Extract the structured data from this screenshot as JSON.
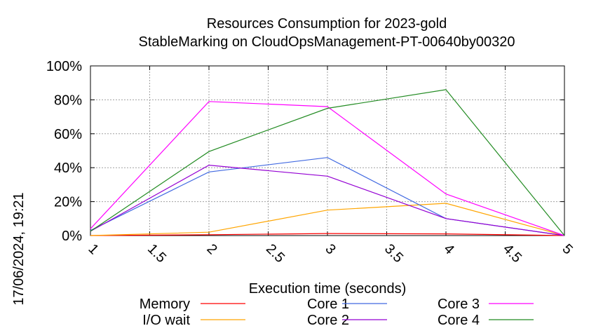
{
  "chart_data": {
    "type": "line",
    "title": "Resources Consumption for 2023-gold",
    "subtitle": "StableMarking on CloudOpsManagement-PT-00640by00320",
    "xlabel": "Execution time (seconds)",
    "ylabel": "",
    "timestamp": "17/06/2024, 19:21",
    "xlim": [
      1,
      5
    ],
    "ylim": [
      0,
      100
    ],
    "x_ticks": [
      "1",
      "1.5",
      "2",
      "2.5",
      "3",
      "3.5",
      "4",
      "4.5",
      "5"
    ],
    "y_ticks": [
      "0%",
      "20%",
      "40%",
      "60%",
      "80%",
      "100%"
    ],
    "grid": true,
    "legend_position": "bottom",
    "series": [
      {
        "name": "Memory",
        "color": "#ff0000",
        "x": [
          1,
          2,
          3,
          4,
          5
        ],
        "values": [
          0,
          0.5,
          1.2,
          1,
          0
        ]
      },
      {
        "name": "I/O wait",
        "color": "#ffa500",
        "x": [
          1,
          2,
          3,
          4,
          5
        ],
        "values": [
          0,
          2,
          15,
          19,
          0
        ]
      },
      {
        "name": "Core 1",
        "color": "#4169e1",
        "x": [
          1,
          2,
          3,
          4,
          5
        ],
        "values": [
          3,
          37.5,
          46,
          10,
          0
        ]
      },
      {
        "name": "Core 2",
        "color": "#9400d3",
        "x": [
          1,
          2,
          3,
          4,
          5
        ],
        "values": [
          2.5,
          41.5,
          35,
          10,
          0
        ]
      },
      {
        "name": "Core 3",
        "color": "#ff00ff",
        "x": [
          1,
          2,
          3,
          4,
          5
        ],
        "values": [
          4,
          79,
          76,
          24.5,
          0
        ]
      },
      {
        "name": "Core 4",
        "color": "#228b22",
        "x": [
          1,
          2,
          3,
          4,
          5
        ],
        "values": [
          2.5,
          49.5,
          75,
          86,
          0
        ]
      }
    ]
  }
}
